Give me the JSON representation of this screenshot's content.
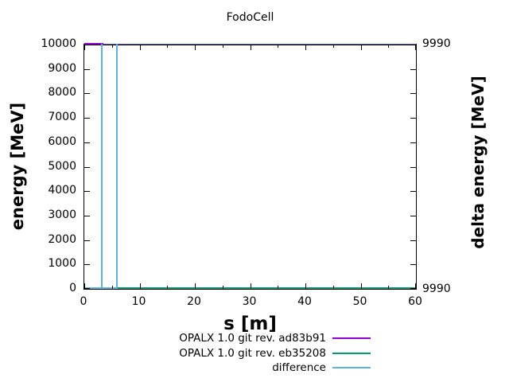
{
  "chart_data": {
    "type": "line",
    "title": "FodoCell",
    "xlabel": "s [m]",
    "ylabel": "energy [MeV]",
    "y2label": "delta energy [MeV]",
    "xlim": [
      0,
      60
    ],
    "ylim": [
      0,
      10000
    ],
    "xticks": [
      0,
      10,
      20,
      30,
      40,
      50,
      60
    ],
    "xminorticks": [
      5,
      15,
      25,
      35,
      45,
      55
    ],
    "yticks": [
      0,
      1000,
      2000,
      3000,
      4000,
      5000,
      6000,
      7000,
      8000,
      9000,
      10000
    ],
    "y2tick_labels": {
      "top": "9990",
      "bottom": "9990"
    },
    "grid": false,
    "legend_position": "below-plot-right",
    "series": [
      {
        "name": "OPALX 1.0 git rev. ad83b91",
        "color": "#9400d3",
        "axis": "y1",
        "x": [
          0,
          60
        ],
        "y": [
          10000,
          10000
        ],
        "visible_top_segment_end_s": 3.4
      },
      {
        "name": "OPALX 1.0 git rev. eb35208",
        "color": "#009e73",
        "axis": "y1",
        "x": [
          0,
          60
        ],
        "y": [
          0,
          0
        ]
      },
      {
        "name": "difference",
        "color": "#56b4e9",
        "axis": "y2",
        "value_approx": 9990,
        "spikes_s": [
          3.2,
          5.9
        ],
        "bottom_segment_s": [
          0,
          5.9
        ],
        "top_segment_s": [
          5.9,
          60
        ]
      }
    ],
    "top_border_overlay_color": "#4a5fd4"
  }
}
